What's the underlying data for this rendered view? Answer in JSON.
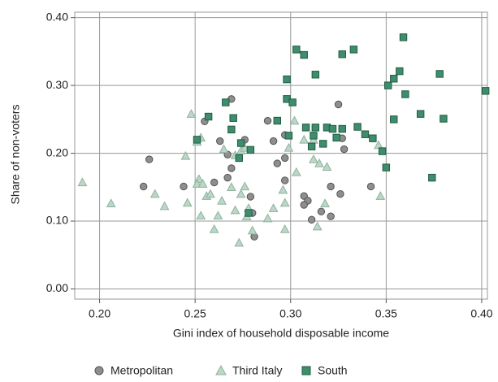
{
  "chart_data": {
    "type": "scatter",
    "x_label": "Gini index of household disposable income",
    "y_label": "Share of non-voters",
    "xlim": [
      0.187,
      0.403
    ],
    "ylim": [
      -0.015,
      0.408
    ],
    "xticks": [
      {
        "value": 0.2,
        "label": "0.20"
      },
      {
        "value": 0.25,
        "label": "0.25"
      },
      {
        "value": 0.3,
        "label": "0.30"
      },
      {
        "value": 0.35,
        "label": "0.35"
      },
      {
        "value": 0.4,
        "label": "0.40"
      }
    ],
    "yticks": [
      {
        "value": 0,
        "label": "0.00"
      },
      {
        "value": 0.1,
        "label": "0.10"
      },
      {
        "value": 0.2,
        "label": "0.20"
      },
      {
        "value": 0.3,
        "label": "0.30"
      },
      {
        "value": 0.4,
        "label": "0.40"
      }
    ],
    "grid": true,
    "legend": "bottom",
    "series": [
      {
        "name": "Metropolitan",
        "marker": "circle",
        "color": "#8e8e8e",
        "stroke": "#555555",
        "x": [
          0.226,
          0.223,
          0.269,
          0.255,
          0.288,
          0.325,
          0.263,
          0.276,
          0.291,
          0.297,
          0.293,
          0.297,
          0.327,
          0.328,
          0.267,
          0.269,
          0.267,
          0.26,
          0.244,
          0.279,
          0.28,
          0.281,
          0.297,
          0.307,
          0.309,
          0.307,
          0.311,
          0.316,
          0.321,
          0.321,
          0.326,
          0.342
        ],
        "values": [
          0.191,
          0.151,
          0.28,
          0.247,
          0.248,
          0.272,
          0.218,
          0.22,
          0.218,
          0.193,
          0.185,
          0.227,
          0.222,
          0.206,
          0.198,
          0.178,
          0.164,
          0.157,
          0.151,
          0.136,
          0.112,
          0.077,
          0.16,
          0.137,
          0.13,
          0.124,
          0.102,
          0.114,
          0.151,
          0.107,
          0.14,
          0.151
        ]
      },
      {
        "name": "Third Italy",
        "marker": "triangle",
        "color": "#bdd6c8",
        "stroke": "#8db39e",
        "x": [
          0.191,
          0.206,
          0.229,
          0.234,
          0.246,
          0.245,
          0.248,
          0.251,
          0.253,
          0.252,
          0.251,
          0.254,
          0.253,
          0.256,
          0.258,
          0.26,
          0.262,
          0.264,
          0.265,
          0.269,
          0.271,
          0.271,
          0.273,
          0.274,
          0.276,
          0.277,
          0.278,
          0.276,
          0.274,
          0.28,
          0.288,
          0.291,
          0.297,
          0.297,
          0.296,
          0.303,
          0.302,
          0.299,
          0.307,
          0.312,
          0.312,
          0.315,
          0.314,
          0.318,
          0.319,
          0.346,
          0.347
        ],
        "values": [
          0.157,
          0.126,
          0.14,
          0.122,
          0.127,
          0.196,
          0.258,
          0.217,
          0.223,
          0.162,
          0.155,
          0.155,
          0.108,
          0.137,
          0.14,
          0.088,
          0.108,
          0.13,
          0.206,
          0.15,
          0.116,
          0.197,
          0.068,
          0.204,
          0.208,
          0.107,
          0.119,
          0.151,
          0.14,
          0.086,
          0.104,
          0.119,
          0.088,
          0.127,
          0.146,
          0.172,
          0.248,
          0.208,
          0.22,
          0.191,
          0.22,
          0.185,
          0.092,
          0.126,
          0.18,
          0.212,
          0.137
        ]
      },
      {
        "name": "South",
        "marker": "square",
        "color": "#3f8d6d",
        "stroke": "#1f5c43",
        "x": [
          0.251,
          0.257,
          0.266,
          0.269,
          0.27,
          0.273,
          0.274,
          0.279,
          0.278,
          0.293,
          0.298,
          0.298,
          0.299,
          0.301,
          0.303,
          0.307,
          0.308,
          0.313,
          0.311,
          0.312,
          0.313,
          0.317,
          0.319,
          0.322,
          0.324,
          0.327,
          0.327,
          0.333,
          0.335,
          0.339,
          0.343,
          0.348,
          0.35,
          0.351,
          0.354,
          0.354,
          0.357,
          0.36,
          0.359,
          0.368,
          0.374,
          0.378,
          0.38,
          0.402
        ],
        "values": [
          0.22,
          0.254,
          0.275,
          0.235,
          0.252,
          0.193,
          0.215,
          0.205,
          0.112,
          0.248,
          0.309,
          0.28,
          0.226,
          0.275,
          0.353,
          0.345,
          0.238,
          0.316,
          0.21,
          0.226,
          0.238,
          0.214,
          0.238,
          0.236,
          0.223,
          0.346,
          0.236,
          0.353,
          0.239,
          0.228,
          0.222,
          0.203,
          0.179,
          0.3,
          0.31,
          0.25,
          0.321,
          0.287,
          0.371,
          0.258,
          0.164,
          0.317,
          0.251,
          0.292
        ]
      }
    ]
  }
}
